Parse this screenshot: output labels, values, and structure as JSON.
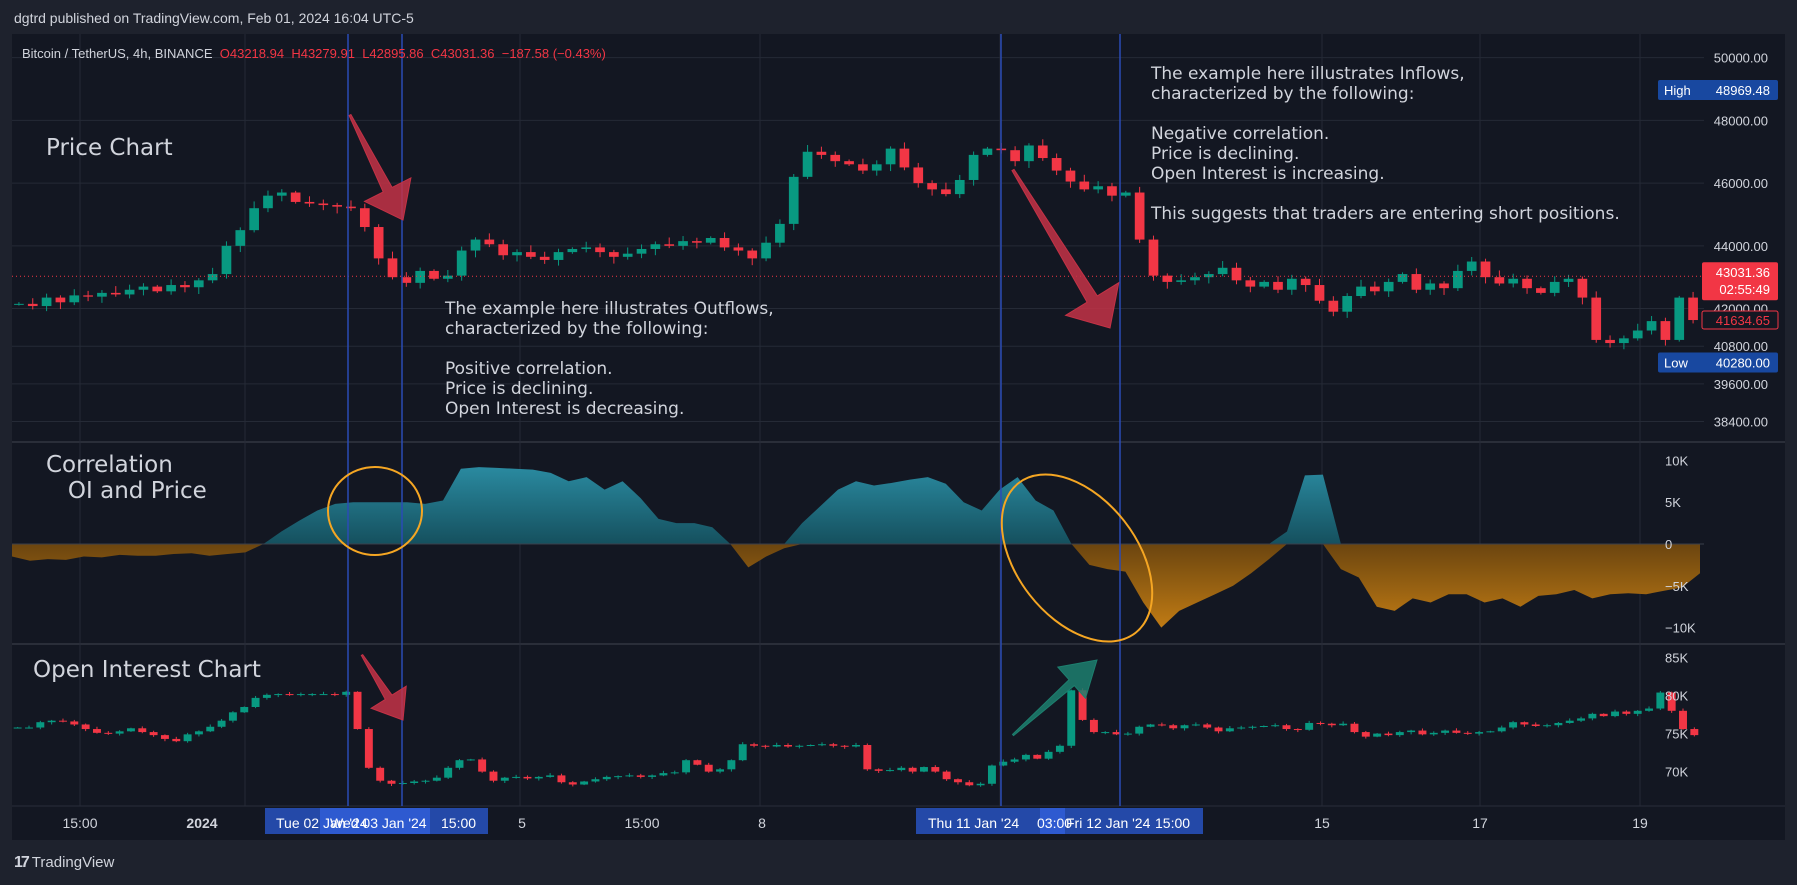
{
  "header": {
    "published": "dgtrd published on TradingView.com, Feb 01, 2024 16:04 UTC-5"
  },
  "footer": {
    "brand": "TradingView",
    "brand_mark": "17"
  },
  "symbol": {
    "name": "Bitcoin / TetherUS, 4h, BINANCE",
    "open": "O43218.94",
    "high": "H43279.91",
    "low": "L42895.86",
    "close": "C43031.36",
    "change": "−187.58 (−0.43%)"
  },
  "pane_titles": {
    "price": "Price Chart",
    "correlation": "Correlation\n   OI and Price",
    "oi": "Open Interest Chart"
  },
  "notes": {
    "inflows": "The example here illustrates Inflows,\ncharacterized by the following:\n\nNegative correlation.\nPrice is declining.\nOpen Interest is increasing.\n\nThis suggests that traders are entering short positions.",
    "outflows": "The example here illustrates Outflows,\ncharacterized by the following:\n\nPositive correlation.\nPrice is declining.\nOpen Interest is decreasing."
  },
  "colors": {
    "background": "#131722",
    "frame": "#1e222d",
    "grid": "#252a36",
    "bull": "#089981",
    "bear": "#f23645",
    "positive_area": "#1f6f82",
    "negative_area": "#a56a12",
    "vertical_line": "#2a4bb5",
    "ellipse": "#f5a623",
    "arrow_red": "#c43246",
    "arrow_green": "#1d7f6e",
    "text": "#d1d4dc"
  },
  "price_axis": {
    "labels": [
      "50000.00",
      "48000.00",
      "46000.00",
      "44000.00",
      "42000.00",
      "40800.00",
      "39600.00",
      "38400.00"
    ],
    "high_label": "High",
    "high_value": "48969.48",
    "low_label": "Low",
    "low_value": "40280.00",
    "last_price": "43031.36",
    "countdown": "02:55:49",
    "marker_price": "41634.65"
  },
  "correlation_axis": {
    "labels": [
      "10K",
      "5K",
      "0",
      "−5K",
      "−10K"
    ]
  },
  "oi_axis": {
    "labels": [
      "85K",
      "80K",
      "75K",
      "70K"
    ]
  },
  "time_axis": {
    "labels": [
      "15:00",
      "2024",
      "5",
      "15:00",
      "8",
      "15",
      "17",
      "19"
    ],
    "highlight_1": "Tue 02 Jan '24",
    "highlight_2": "Wed 03 Jan '24",
    "highlight_3": "Thu 11 Jan '24",
    "highlight_4": "Fri 12 Jan '24",
    "time_a": "15:00",
    "time_b": "03:00",
    "time_c": "15:00"
  },
  "chart_data": [
    {
      "type": "candlestick",
      "title": "Bitcoin / TetherUS, 4h, BINANCE",
      "ylim": [
        38000,
        50500
      ],
      "high": 48969.48,
      "low": 40280.0,
      "last": 43031.36,
      "closes": [
        42150,
        42080,
        42350,
        42200,
        42420,
        42380,
        42500,
        42450,
        42600,
        42700,
        42550,
        42750,
        42680,
        42900,
        43100,
        44000,
        44500,
        45200,
        45600,
        45700,
        45400,
        45350,
        45300,
        45250,
        45200,
        44600,
        43600,
        43000,
        42820,
        43200,
        42950,
        43050,
        43850,
        44200,
        44050,
        43700,
        43800,
        43650,
        43550,
        43800,
        43900,
        43950,
        43800,
        43650,
        43750,
        43900,
        44050,
        44000,
        44150,
        44100,
        44250,
        43950,
        43850,
        43600,
        44100,
        44700,
        46200,
        47000,
        46900,
        46700,
        46600,
        46400,
        46600,
        47100,
        46500,
        46000,
        45800,
        45650,
        46100,
        46900,
        47100,
        47050,
        46700,
        47200,
        46800,
        46400,
        46050,
        45800,
        45900,
        45600,
        45700,
        44200,
        43050,
        42850,
        42900,
        43000,
        43100,
        43300,
        42900,
        42700,
        42850,
        42600,
        42950,
        42750,
        42250,
        41900,
        42400,
        42700,
        42550,
        42850,
        43100,
        42600,
        42800,
        42650,
        43200,
        43500,
        43000,
        42800,
        42950,
        42650,
        42500,
        42850,
        42950,
        42350,
        41000,
        40900,
        41050,
        41300,
        41600,
        41000,
        42350,
        41634
      ]
    },
    {
      "type": "area",
      "title": "Correlation OI and Price",
      "ylim": [
        -11000,
        11000
      ],
      "values": [
        -1500,
        -2000,
        -1800,
        -1900,
        -1500,
        -1600,
        -1300,
        -1400,
        -1400,
        -1200,
        -1100,
        -1400,
        -1200,
        -1000,
        0,
        1500,
        2800,
        4000,
        4800,
        5000,
        5000,
        5000,
        5000,
        4800,
        5200,
        9000,
        9200,
        9100,
        9000,
        8900,
        8500,
        7500,
        8000,
        6500,
        7500,
        5500,
        3000,
        2500,
        2500,
        2000,
        0,
        -2800,
        -1500,
        -500,
        2500,
        4500,
        6500,
        7500,
        7000,
        7300,
        7700,
        8000,
        7200,
        5000,
        4000,
        6500,
        8000,
        5200,
        4000,
        0,
        -2500,
        -3000,
        -3300,
        -7000,
        -10000,
        -8000,
        -7000,
        -6000,
        -5000,
        -3500,
        -1800,
        1500,
        8200,
        8300,
        -3000,
        -4000,
        -7500,
        -8000,
        -6500,
        -7000,
        -6000,
        -6000,
        -7000,
        -6500,
        -7500,
        -6200,
        -6000,
        -5500,
        -6500,
        -6000,
        -5900,
        -6000,
        -5600,
        -5200,
        -3500
      ]
    },
    {
      "type": "candlestick",
      "title": "Open Interest",
      "ylim": [
        66000,
        86000
      ],
      "closes": [
        75800,
        75800,
        76500,
        76700,
        76600,
        76200,
        75600,
        75100,
        75000,
        75300,
        75700,
        75200,
        74800,
        74300,
        74000,
        74900,
        75300,
        75900,
        76700,
        77800,
        78500,
        79700,
        80100,
        80200,
        80100,
        80200,
        80200,
        80200,
        80100,
        80500,
        75600,
        70500,
        68800,
        68400,
        68500,
        68700,
        68800,
        69200,
        70500,
        71500,
        71600,
        70000,
        68800,
        69200,
        69300,
        69100,
        69300,
        69500,
        68600,
        68300,
        68700,
        69000,
        69300,
        69400,
        69500,
        69300,
        69500,
        69800,
        69900,
        71500,
        70900,
        70000,
        70300,
        71500,
        73600,
        73400,
        73300,
        73500,
        73300,
        73400,
        73500,
        73600,
        73400,
        73300,
        73500,
        70300,
        70100,
        70200,
        70500,
        70000,
        70600,
        70000,
        69000,
        68600,
        68200,
        68400,
        70800,
        71300,
        71600,
        72200,
        71700,
        72600,
        73400,
        80700,
        76800,
        75200,
        75200,
        74900,
        75000,
        75900,
        76200,
        76100,
        75700,
        76100,
        76200,
        75800,
        75300,
        75700,
        75800,
        75900,
        76000,
        76100,
        75600,
        75500,
        76400,
        76300,
        76100,
        76300,
        75200,
        74600,
        75000,
        74800,
        75200,
        75400,
        74900,
        75100,
        75400,
        75100,
        75000,
        75200,
        75300,
        75800,
        76500,
        76200,
        76000,
        76100,
        76400,
        76700,
        77000,
        77600,
        77300,
        77900,
        77600,
        78000,
        78300,
        80400,
        78000,
        75600,
        74800
      ]
    }
  ]
}
